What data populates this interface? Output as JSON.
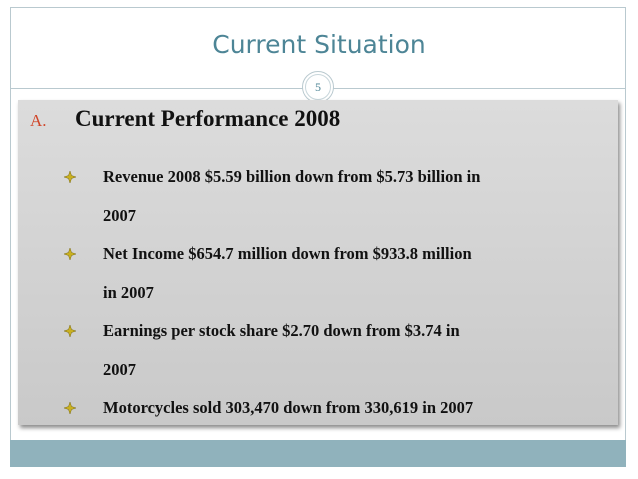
{
  "slide": {
    "title": "Current Situation",
    "page_number": "5",
    "section": {
      "marker": "A.",
      "heading": "Current Performance 2008"
    },
    "bullets": [
      {
        "lines": [
          "Revenue 2008 $5.59 billion down from $5.73 billion in",
          "2007"
        ]
      },
      {
        "lines": [
          "Net Income $654.7 million down from $933.8 million",
          "in 2007"
        ]
      },
      {
        "lines": [
          "Earnings per stock share $2.70 down from $3.74 in",
          "2007"
        ]
      },
      {
        "lines": [
          "Motorcycles sold 303,470 down from 330,619 in 2007"
        ]
      }
    ]
  }
}
